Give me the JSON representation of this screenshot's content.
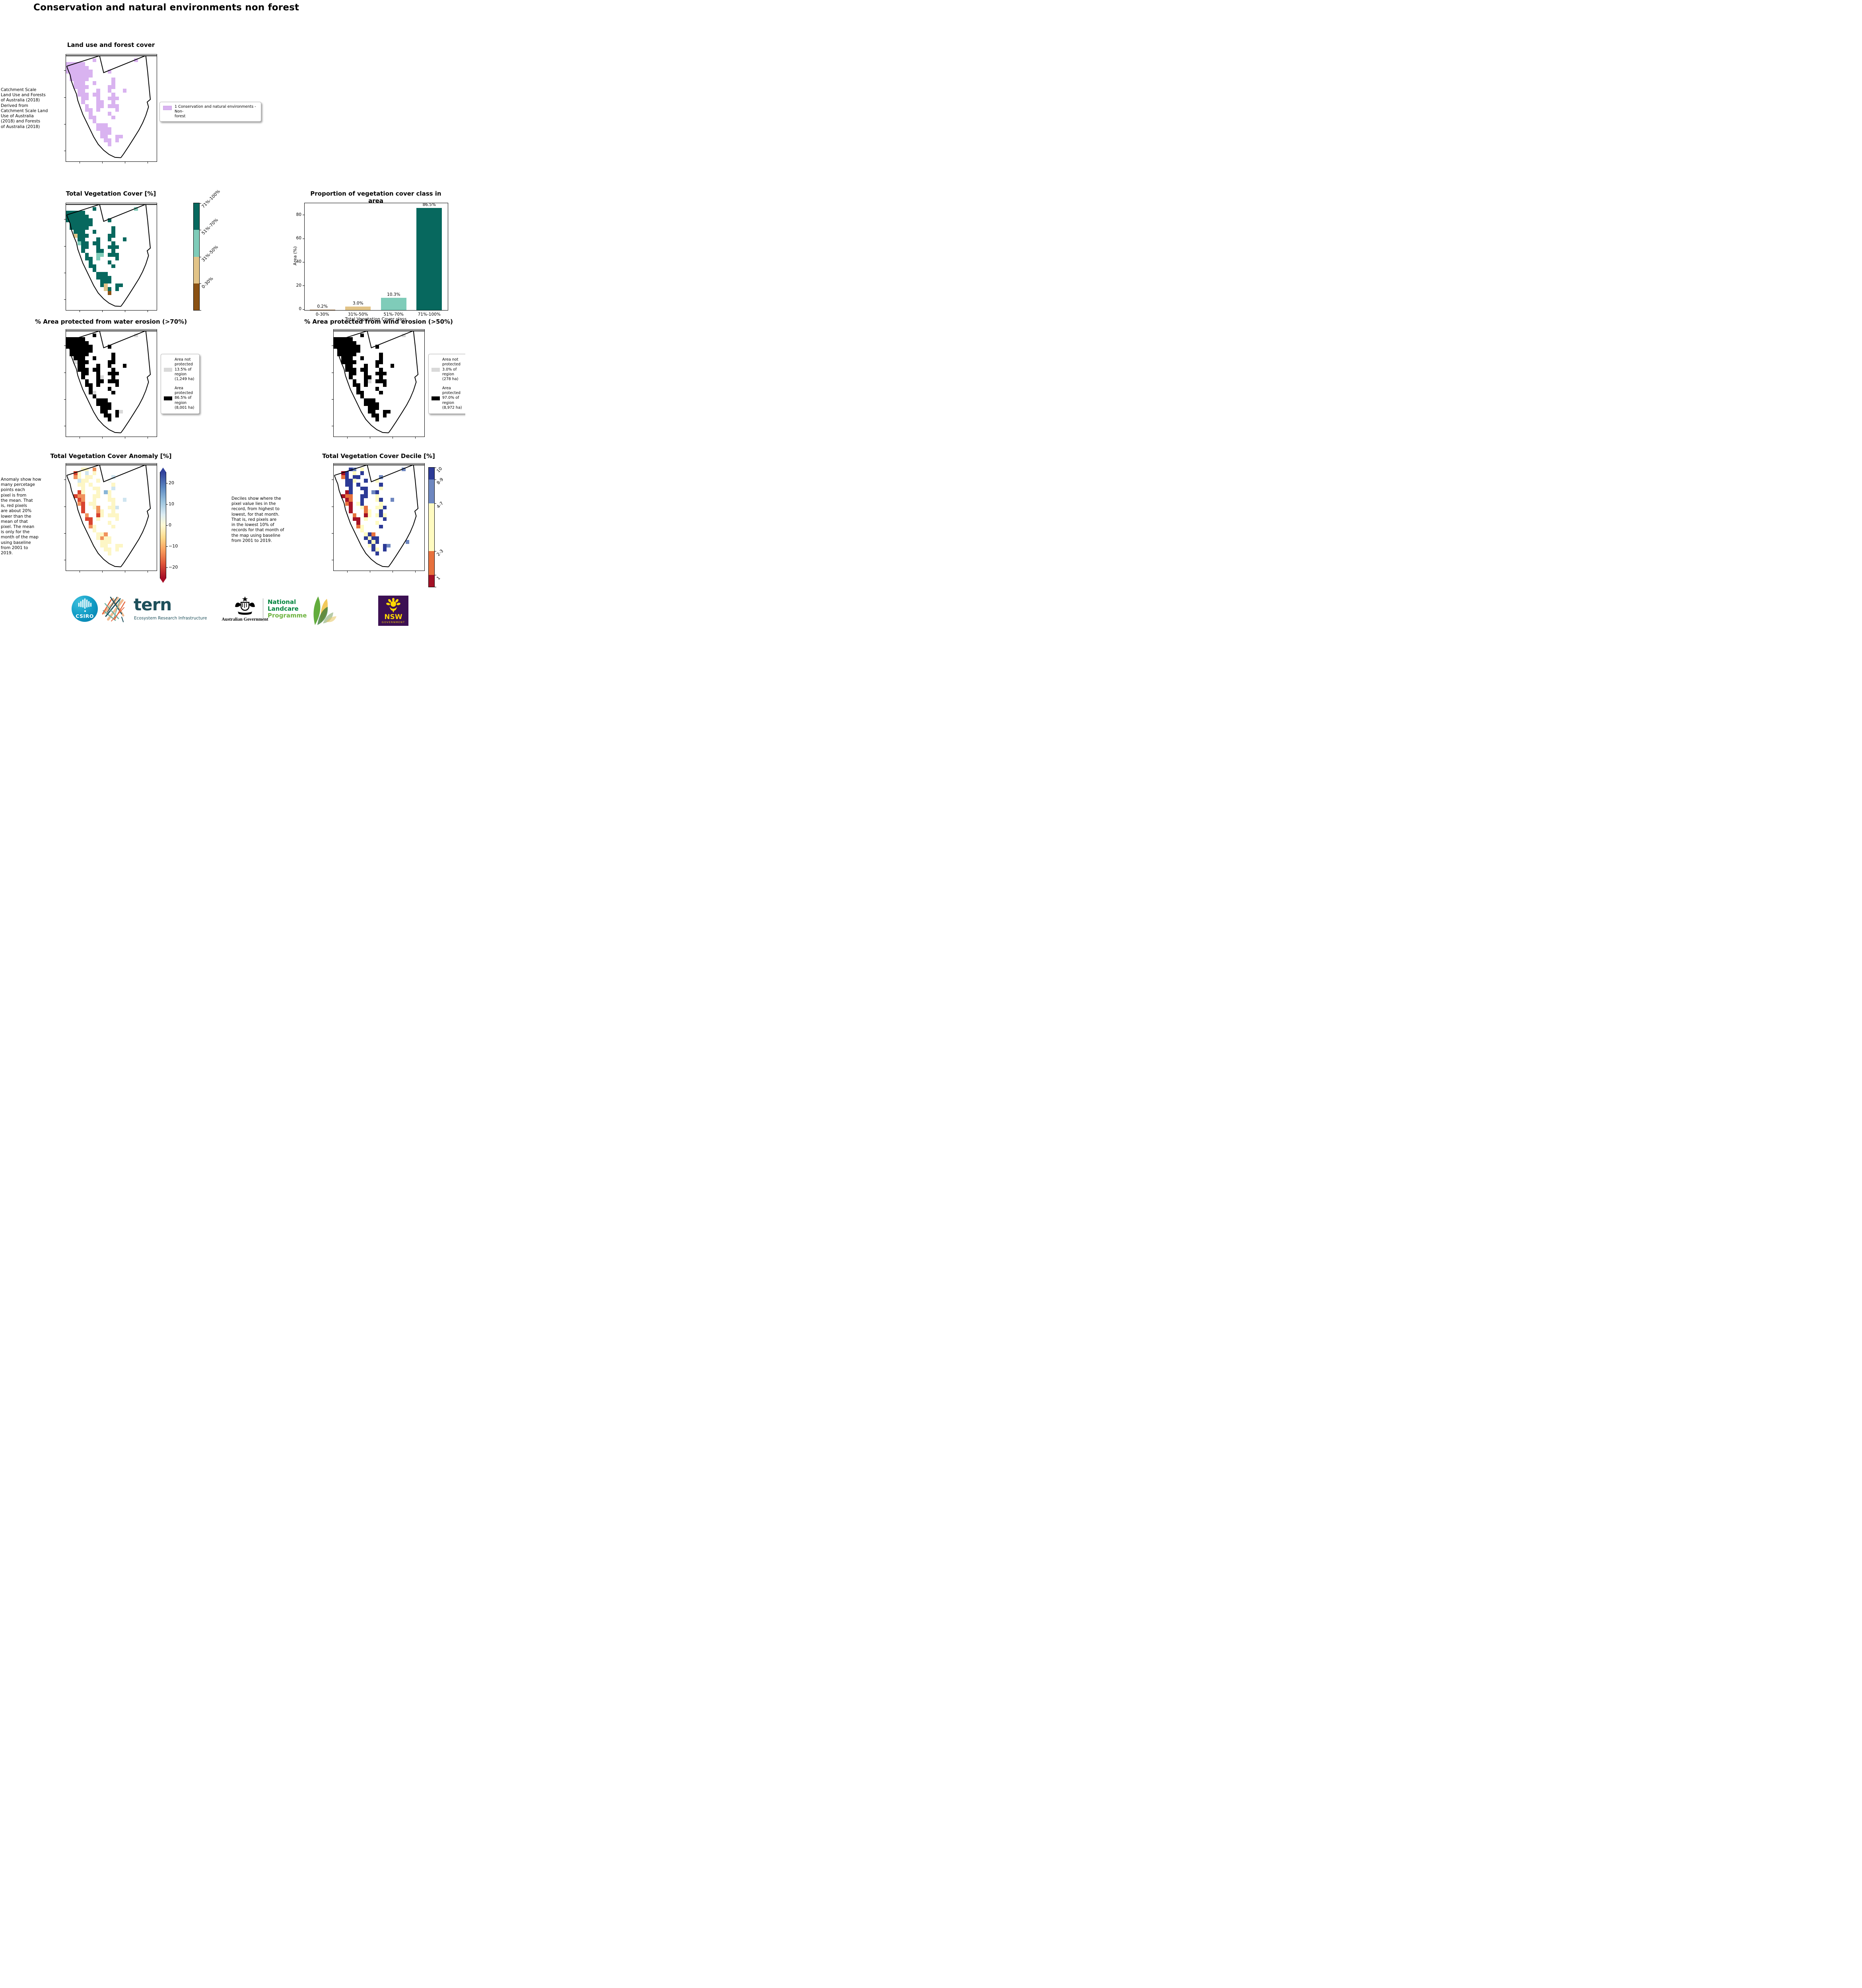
{
  "page": {
    "title": "Conservation and natural environments non forest"
  },
  "panels": {
    "landuse": {
      "title": "Land use and forest cover",
      "note": " Catchment Scale\nLand Use and Forests\nof Australia (2018)\nDerived from\nCatchment Scale Land\nUse of Australia\n(2018) and Forests\nof Australia (2018)",
      "legend_label": "1 Conservation and natural environments - Non-\nforest",
      "legend_color": "#d9b3f0"
    },
    "tvc": {
      "title": "Total Vegetation Cover [%]",
      "colorbar": [
        {
          "label": "71%-100%",
          "color": "#07685e",
          "h": 25
        },
        {
          "label": "51%-70%",
          "color": "#7fccb9",
          "h": 25
        },
        {
          "label": "31%-50%",
          "color": "#e2c488",
          "h": 25
        },
        {
          "label": "0-30%",
          "color": "#8a5113",
          "h": 25
        }
      ]
    },
    "water": {
      "title": "% Area protected from water erosion (>70%)",
      "legend": [
        {
          "color": "#d9d9d9",
          "label": "Area not\nprotected\n13.5% of\nregion\n(1,249 ha)"
        },
        {
          "color": "#000000",
          "label": "Area\nprotected\n86.5% of\nregion\n(8,001 ha)"
        }
      ]
    },
    "wind": {
      "title": "% Area protected from wind erosion (>50%)",
      "legend": [
        {
          "color": "#d9d9d9",
          "label": "Area not\nprotected\n3.0% of\nregion\n(278 ha)"
        },
        {
          "color": "#000000",
          "label": "Area\nprotected\n97.0% of\nregion\n(8,972 ha)"
        }
      ]
    },
    "anomaly": {
      "title": "Total Vegetation Cover Anomaly [%]",
      "note": "Anomaly show how\nmany percetage\npoints each\npixel is from\nthe mean. That\nis, red pixels\nare about 20%\nlower than the\nmean of that\npixel. The mean\nis only for the\nmonth of the map\nusing baseline\nfrom 2001 to\n2019.",
      "cbar_ticks": [
        {
          "label": "20",
          "pos": 10
        },
        {
          "label": "10",
          "pos": 30
        },
        {
          "label": "0",
          "pos": 50
        },
        {
          "label": "−10",
          "pos": 70
        },
        {
          "label": "−20",
          "pos": 90
        }
      ]
    },
    "decile": {
      "title": "Total Vegetation Cover Decile [%]",
      "note": "Deciles show where the\npixel value lies in the\nrecord, from highest to\nlowest, for that month.\nThat is, red pixels are\nin the lowest 10% of\nrecords for that month of\nthe map using baseline\nfrom 2001 to 2019.",
      "colorbar": [
        {
          "label": "10",
          "color": "#2c3a96",
          "h": 10
        },
        {
          "label": "8-9",
          "color": "#6e87c0",
          "h": 20
        },
        {
          "label": "4-7",
          "color": "#fffbc1",
          "h": 40
        },
        {
          "label": "2-3",
          "color": "#e7713d",
          "h": 20
        },
        {
          "label": "1",
          "color": "#a31126",
          "h": 10
        }
      ]
    }
  },
  "chart_data": {
    "type": "bar",
    "title": "Proportion of vegetation cover class in area",
    "categories": [
      "0-30%",
      "31%-50%",
      "51%-70%",
      "71%-100%"
    ],
    "values": [
      0.2,
      3.0,
      10.3,
      86.5
    ],
    "value_labels": [
      "0.2%",
      "3.0%",
      "10.3%",
      "86.5%"
    ],
    "bar_colors": [
      "#8a5113",
      "#e2c488",
      "#7fccb9",
      "#07685e"
    ],
    "xlabel": "Total Vegetation Cover class",
    "ylabel": "Area (%)",
    "yticks": [
      0,
      20,
      40,
      60,
      80
    ],
    "ylim": [
      0,
      90
    ],
    "grid": false,
    "legend_position": "none"
  },
  "maps": {
    "landuse": {
      "palette": {
        "p": "#d9b3f0"
      },
      "grid": [
        "........................",
        ".......p..........p.....",
        "ppppp...................",
        "pppppp..................",
        "ppppppp....p............",
        ".pppppp.................",
        ".ppppp......p...........",
        "..ppp..p....p...........",
        "..pppp.....pp...........",
        "...pp...p..p...p........",
        "...ppp.pp...p...........",
        "....pp..p..ppp..........",
        "....p...pp..p...........",
        ".....p..pp.ppp..........",
        ".....pp.p....p..........",
        "......p....p............",
        "......pp....p...........",
        ".......p................",
        "........ppp.............",
        "........pppp............",
        ".........ppp............",
        ".........pp..pp.........",
        "..........pp.p..........",
        "...........p............",
        "........................",
        "........................",
        "........................",
        "........................"
      ]
    },
    "tvc": {
      "palette": {
        "d": "#07685e",
        "l": "#7fccb9",
        "t": "#e2c488",
        "b": "#8a5113"
      },
      "grid": [
        "........................",
        ".......d..........l.....",
        "ddddd...................",
        "dddddd..................",
        "ddddddd....d............",
        ".dddddd.................",
        ".ddddd......d...........",
        "..ddd..d....d...........",
        "..tddd.....dd...........",
        "...dd...d..d...d........",
        "...ldd.dd...d...........",
        "....dd..d..ddd..........",
        "....d...dd..d...........",
        ".....d..ll.ddd..........",
        ".....dd.l....d..........",
        "......d....d............",
        "......dd....d...........",
        ".......d................",
        "........ddd.............",
        "........dddd............",
        ".........ddd............",
        ".........dt..dd.........",
        "..........td.d..........",
        "...........b............",
        "........................",
        "........................",
        "........................",
        "........................"
      ]
    },
    "water": {
      "palette": {
        "k": "#000000",
        "g": "#d9d9d9"
      },
      "grid": [
        "........................",
        ".......k..........g.....",
        "kkkkk...................",
        "kkkkkk..................",
        "kkkkkkk....k............",
        ".kkkkkk.................",
        ".kkkkk......k...........",
        "..kkk..k....k...........",
        "..gkkk.....kk...........",
        "...kk...k..k...k........",
        "...kkk.kk...k...........",
        "....kk..k..kkk..........",
        "....k...kg..k...........",
        ".....k..kk.kkk..........",
        ".....kk.k....k..........",
        "......k....k............",
        "......kg....k...........",
        ".......k................",
        "........kkk.............",
        "........kkkk............",
        ".........kkk............",
        ".........kk..kg.........",
        "..........kk.k..........",
        "...........k............",
        "........................",
        "........................",
        "........................",
        "........................"
      ]
    },
    "wind": {
      "palette": {
        "k": "#000000",
        "g": "#d9d9d9"
      },
      "grid": [
        "........................",
        ".......k..........g.....",
        "kkkkk...................",
        "kkkkkk..................",
        "kkkkkkk....k............",
        ".kkkkkk.................",
        ".kkkkk......k...........",
        "..kkk..k....k...........",
        "..kkkk.....kk...........",
        "...kk...k..k...k........",
        "...kkk.kk...k...........",
        "....kk..k..kkk..........",
        "....k...kk..k...........",
        ".....k..kg.kkk..........",
        ".....kk.k....k..........",
        "......k....k............",
        "......kk....k...........",
        ".......k................",
        "........kkk.............",
        "........kkkk............",
        ".........kkk............",
        ".........kk..kk.........",
        "..........kk.k..........",
        "...........k............",
        "........................",
        "........................",
        "........................",
        "........................"
      ]
    },
    "anomaly": {
      "palette": {
        "y": "#fdf6c5",
        "c": "#cfe5f0",
        "o": "#f0925c",
        "r": "#d8432f",
        "R": "#a31126",
        "b": "#88b5d8",
        "B": "#4d77b5",
        "w": "#f3f8f4"
      },
      "grid": [
        "........................",
        "....yy.o................",
        "..ry.c.y................",
        "..oy.yy.....c...........",
        "...cyy..y..w............",
        "...yy.y.....y...........",
        "....y..yy...c...........",
        "...ry...y.by............",
        "..roo..yy..y............",
        "...ro..y...yy..c........",
        "...or.yy....y...........",
        "....r..yo..yyc..........",
        "....r...oy..y...........",
        ".....o..ry.yyy..........",
        ".....rr.y....y..........",
        "......r....y............",
        "......oy....y...........",
        ".......y................",
        "........yyo.............",
        "........yoyy............",
        ".........yyy............",
        ".........yy..yy.........",
        "..........yy.y..........",
        "...........y............",
        "........................",
        "........................",
        "........................",
        "........................"
      ]
    },
    "decile": {
      "palette": {
        "B": "#2c3a96",
        "b": "#6e87c0",
        "y": "#fffbc1",
        "o": "#e7713d",
        "R": "#a31126"
      },
      "grid": [
        "........................",
        "....Bb.y..........b.....",
        "..RB.y.B................",
        "..oB.BB.....b...........",
        "...BBy..B..y............",
        "...BB.B.....B...........",
        "....B..BB...y...........",
        "...RB...B.bB............",
        "..Roo..BB..y............",
        "...Ro..B...yB..b........",
        "...oR.yB....y...........",
        "....R..yo..yyB..........",
        "....R...oy..B...........",
        ".....o..Ry.yBy..........",
        ".....RR.y....B..........",
        "......R....y............",
        "......oy....B...........",
        ".......y................",
        "........yBo.............",
        "........ByBB............",
        ".........ByB.......b....",
        ".........yB..Bb.........",
        "..........By.B..........",
        "...........B............",
        "........................",
        "........................",
        "........................",
        "........................"
      ]
    }
  },
  "footer": {
    "csiro": "CSIRO",
    "tern": "tern",
    "tern_tagline": "Ecosystem Research Infrastructure",
    "ausgov": "Australian Government",
    "landcare_line1": "National",
    "landcare_line2": "Landcare",
    "landcare_line3": "Programme",
    "nsw": "NSW",
    "nsw_gov": "GOVERNMENT"
  }
}
